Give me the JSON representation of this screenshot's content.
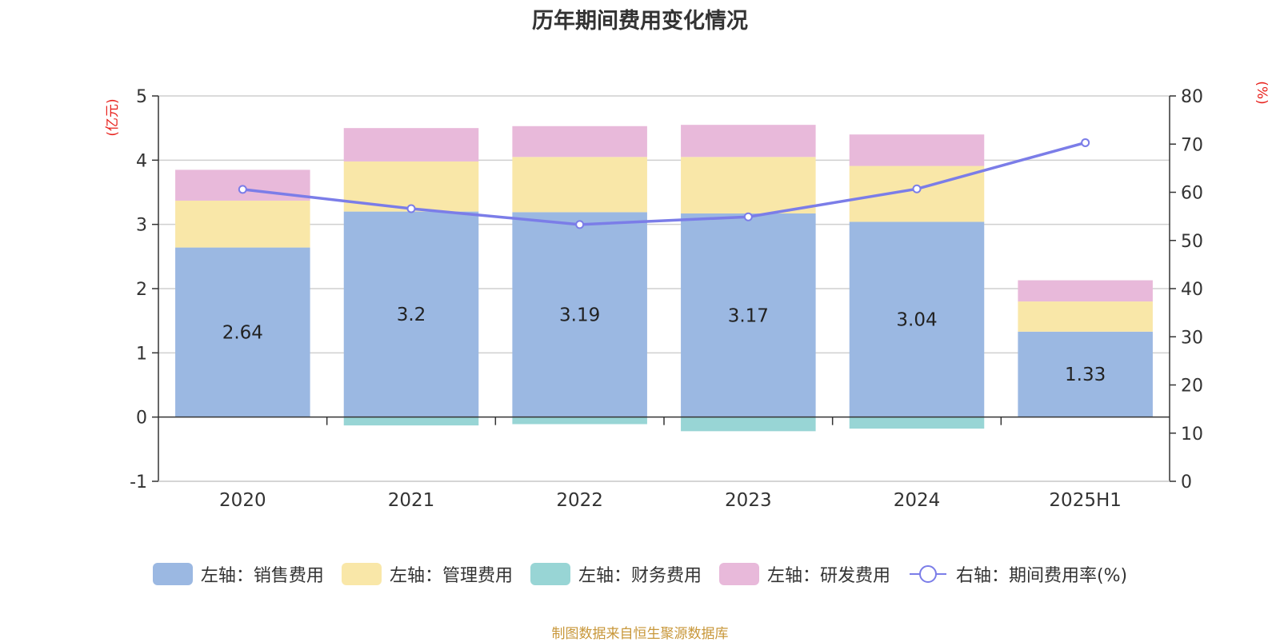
{
  "chart_data": {
    "type": "bar",
    "title": "历年期间费用变化情况",
    "categories": [
      "2020",
      "2021",
      "2022",
      "2023",
      "2024",
      "2025H1"
    ],
    "left_axis": {
      "unit_label": "(亿元)",
      "ylim": [
        -1,
        5
      ],
      "ticks": [
        -1,
        0,
        1,
        2,
        3,
        4,
        5
      ]
    },
    "right_axis": {
      "unit_label": "(%)",
      "ylim": [
        0,
        80
      ],
      "ticks": [
        0,
        10,
        20,
        30,
        40,
        50,
        60,
        70,
        80
      ]
    },
    "grid": true,
    "legend_position": "bottom",
    "series": [
      {
        "name": "左轴：销售费用",
        "axis": "left",
        "kind": "bar",
        "color": "#9bb8e2",
        "values": [
          2.64,
          3.2,
          3.19,
          3.17,
          3.04,
          1.33
        ],
        "data_labels": [
          "2.64",
          "3.2",
          "3.19",
          "3.17",
          "3.04",
          "1.33"
        ]
      },
      {
        "name": "左轴：管理费用",
        "axis": "left",
        "kind": "bar",
        "color": "#f9e7a8",
        "values": [
          0.73,
          0.78,
          0.86,
          0.88,
          0.87,
          0.47
        ]
      },
      {
        "name": "左轴：财务费用",
        "axis": "left",
        "kind": "bar",
        "color": "#98d5d5",
        "values": [
          0.0,
          -0.13,
          -0.11,
          -0.22,
          -0.18,
          0.0
        ]
      },
      {
        "name": "左轴：研发费用",
        "axis": "left",
        "kind": "bar",
        "color": "#e8b9da",
        "values": [
          0.48,
          0.52,
          0.48,
          0.5,
          0.49,
          0.33
        ]
      },
      {
        "name": "右轴：期间费用率(%)",
        "axis": "right",
        "kind": "line",
        "color": "#7b7de8",
        "values": [
          60.6,
          56.6,
          53.3,
          54.9,
          60.7,
          70.3
        ]
      }
    ]
  },
  "source_note": "制图数据来自恒生聚源数据库"
}
